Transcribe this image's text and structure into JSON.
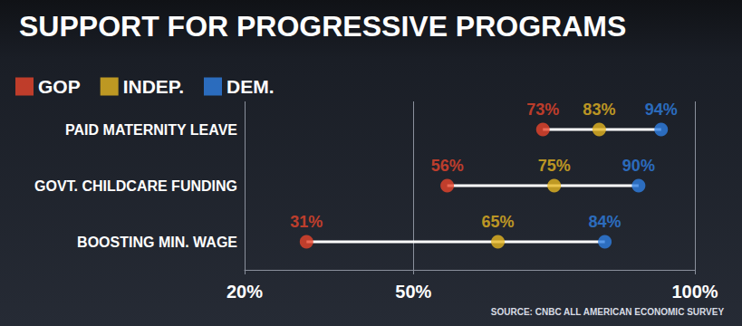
{
  "chart_data": {
    "type": "dumbbell",
    "title": "SUPPORT FOR PROGRESSIVE PROGRAMS",
    "annotations": [
      "SOURCE: CNBC ALL AMERICAN ECONOMIC SURVEY"
    ],
    "orientation": "horizontal",
    "categories": [
      "PAID MATERNITY LEAVE",
      "GOVT. CHILDCARE FUNDING",
      "BOOSTING MIN. WAGE"
    ],
    "series": [
      {
        "name": "GOP",
        "color": "#e8452c",
        "values": [
          73,
          56,
          31
        ],
        "value_labels": [
          "73%",
          "56%",
          "31%"
        ]
      },
      {
        "name": "INDEP.",
        "color": "#e6b622",
        "values": [
          83,
          75,
          65
        ],
        "value_labels": [
          "83%",
          "75%",
          "65%"
        ]
      },
      {
        "name": "DEM.",
        "color": "#2f80e4",
        "values": [
          94,
          90,
          84
        ],
        "value_labels": [
          "94%",
          "90%",
          "84%"
        ]
      }
    ],
    "xlim": [
      20,
      100
    ],
    "xticks": [
      {
        "value": 20,
        "label": "20%"
      },
      {
        "value": 50,
        "label": "50%"
      },
      {
        "value": 100,
        "label": "100%"
      }
    ],
    "grid": true,
    "data_labels": true,
    "legend": "top-left"
  }
}
